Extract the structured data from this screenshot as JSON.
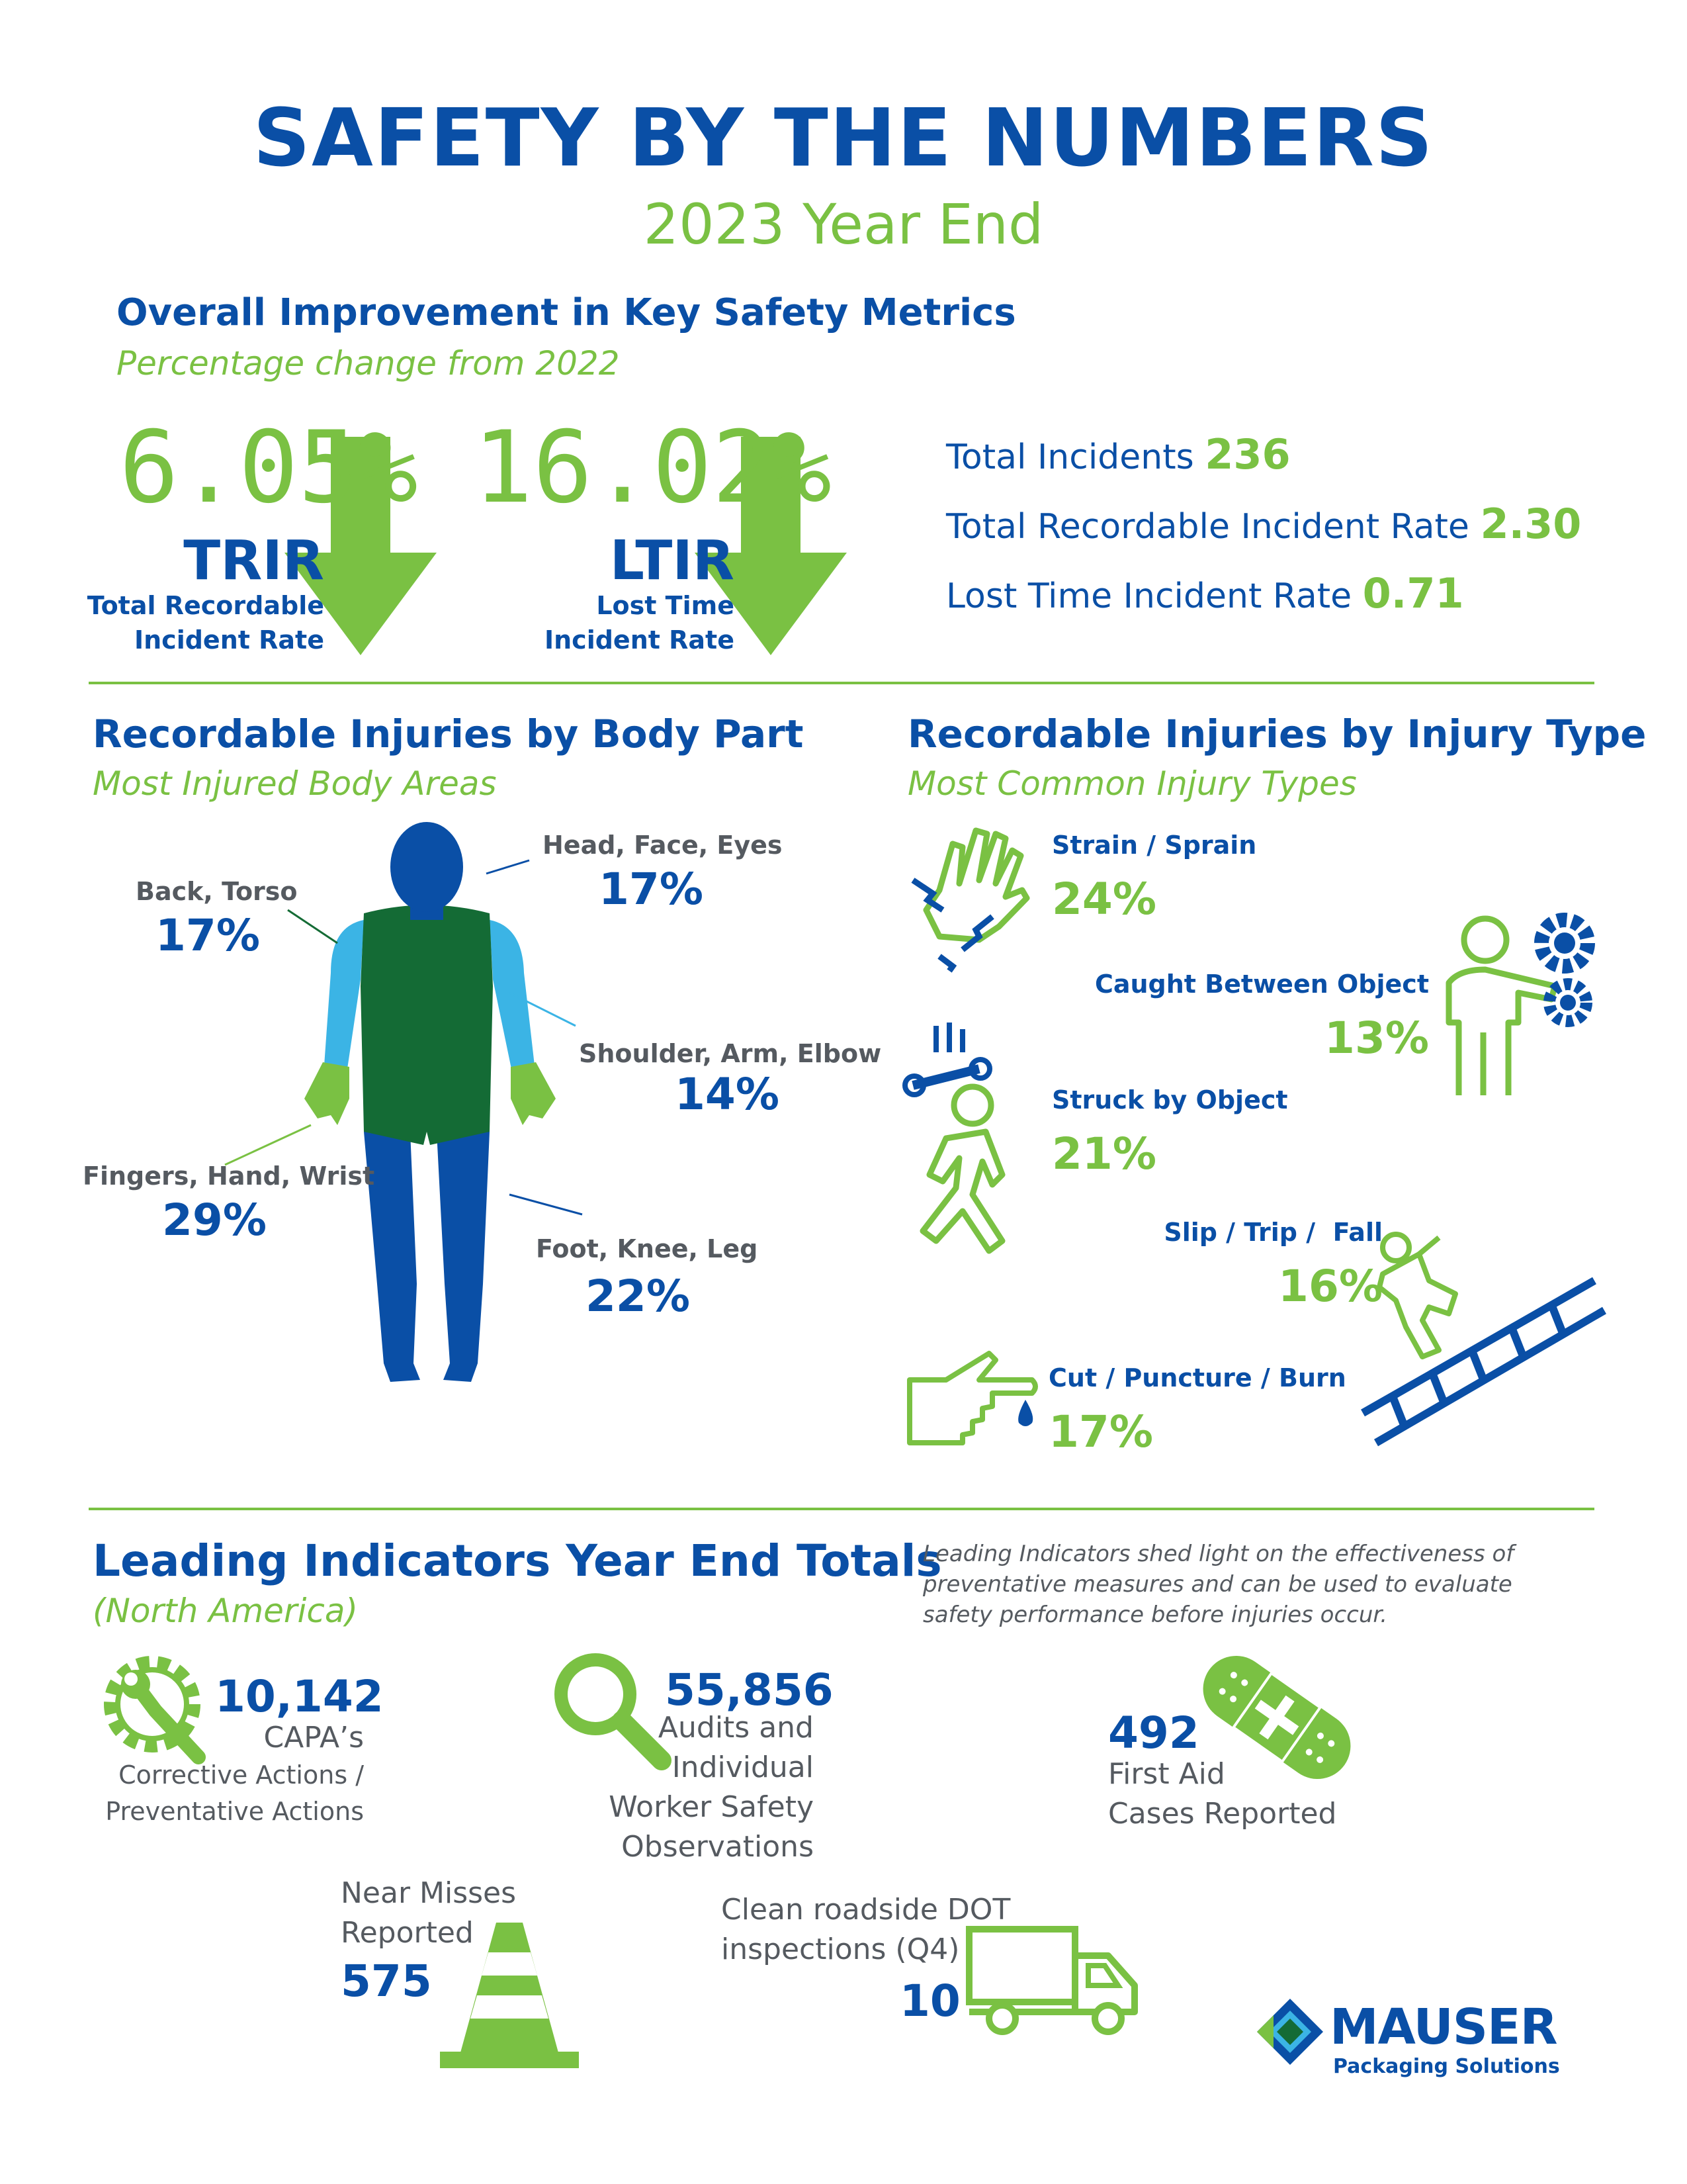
{
  "header": {
    "title": "SAFETY BY THE NUMBERS",
    "subtitle": "2023 Year End"
  },
  "metrics": {
    "heading": "Overall Improvement in Key Safety Metrics",
    "subheading": "Percentage change from 2022",
    "trir": {
      "value": "6.05%",
      "abbr": "TRIR",
      "label_line1": "Total Recordable",
      "label_line2": "Incident Rate"
    },
    "ltir": {
      "value": "16.02%",
      "abbr": "LTIR",
      "label_line1": "Lost Time",
      "label_line2": "Incident Rate"
    },
    "totals": [
      {
        "label": "Total Incidents",
        "value": "236"
      },
      {
        "label": "Total Recordable Incident Rate",
        "value": "2.30"
      },
      {
        "label": "Lost Time Incident Rate",
        "value": "0.71"
      }
    ]
  },
  "body_part": {
    "heading": "Recordable Injuries by Body Part",
    "subheading": "Most Injured Body Areas",
    "items": [
      {
        "label": "Head, Face, Eyes",
        "value": "17%"
      },
      {
        "label": "Back, Torso",
        "value": "17%"
      },
      {
        "label": "Shoulder, Arm, Elbow",
        "value": "14%"
      },
      {
        "label": "Fingers, Hand, Wrist",
        "value": "29%"
      },
      {
        "label": "Foot, Knee, Leg",
        "value": "22%"
      }
    ]
  },
  "injury_type": {
    "heading": "Recordable Injuries by Injury Type",
    "subheading": "Most Common Injury Types",
    "items": [
      {
        "label": "Strain / Sprain",
        "value": "24%",
        "icon": "hand-strain-icon"
      },
      {
        "label": "Caught Between Object",
        "value": "13%",
        "icon": "gears-person-icon"
      },
      {
        "label": "Struck by Object",
        "value": "21%",
        "icon": "falling-wrench-icon"
      },
      {
        "label": "Slip / Trip /  Fall",
        "value": "16%",
        "icon": "ladder-fall-icon"
      },
      {
        "label": "Cut / Puncture / Burn",
        "value": "17%",
        "icon": "cut-finger-icon"
      }
    ]
  },
  "leading": {
    "heading": "Leading Indicators Year End Totals",
    "subheading": "(North America)",
    "note_lines": [
      "Leading Indicators shed light on the effectiveness of",
      "preventative measures and can be used to evaluate",
      "safety performance before injuries occur."
    ],
    "capa": {
      "value": "10,142",
      "line1": "CAPA’s",
      "line2": "Corrective Actions /",
      "line3": "Preventative Actions"
    },
    "audits": {
      "value": "55,856",
      "line1": "Audits and",
      "line2": "Individual",
      "line3": "Worker Safety",
      "line4": "Observations"
    },
    "first_aid": {
      "value": "492",
      "line1": "First Aid",
      "line2": "Cases Reported"
    },
    "near_miss": {
      "line1": "Near Misses",
      "line2": "Reported",
      "value": "575"
    },
    "dot": {
      "line1": "Clean roadside DOT",
      "line2": "inspections (Q4)",
      "value": "10"
    }
  },
  "brand": {
    "name": "MAUSER",
    "tagline": "Packaging Solutions"
  },
  "colors": {
    "blue": "#0a4fa6",
    "green": "#7ac143",
    "dark_green": "#146b35",
    "light_blue": "#3bb4e5",
    "grey": "#555a60"
  }
}
